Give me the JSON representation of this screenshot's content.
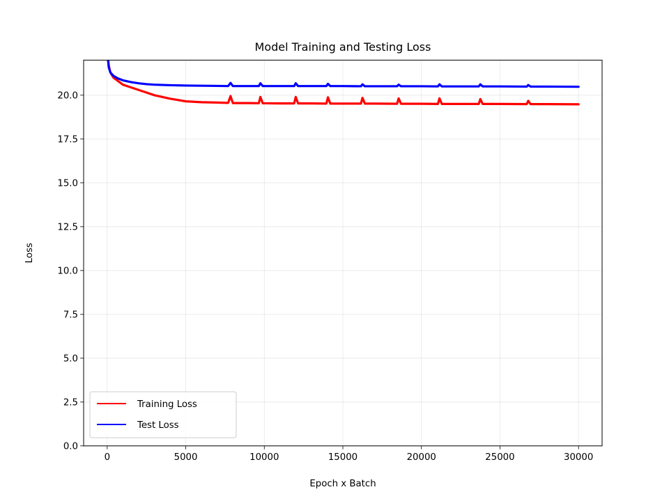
{
  "chart_data": {
    "type": "line",
    "title": "Model Training and Testing Loss",
    "xlabel": "Epoch x Batch",
    "ylabel": "Loss",
    "xlim": [
      -1500,
      31500
    ],
    "ylim": [
      0,
      22
    ],
    "xticks": [
      0,
      5000,
      10000,
      15000,
      20000,
      25000,
      30000
    ],
    "xtick_labels": [
      "0",
      "5000",
      "10000",
      "15000",
      "20000",
      "25000",
      "30000"
    ],
    "yticks": [
      0,
      2.5,
      5,
      7.5,
      10,
      12.5,
      15,
      17.5,
      20
    ],
    "ytick_labels": [
      "0.0",
      "2.5",
      "5.0",
      "7.5",
      "10.0",
      "12.5",
      "15.0",
      "17.5",
      "20.0"
    ],
    "grid": true,
    "legend_position": "lower-left",
    "series": [
      {
        "name": "Training Loss",
        "color": "#ff0000",
        "x": [
          0,
          100,
          200,
          400,
          700,
          1000,
          1500,
          2000,
          2500,
          3000,
          4000,
          5000,
          6000,
          7000,
          7700,
          7850,
          8000,
          9000,
          9650,
          9750,
          9900,
          11000,
          11900,
          12000,
          12150,
          13000,
          13950,
          14050,
          14200,
          15000,
          16150,
          16250,
          16400,
          17000,
          18450,
          18550,
          18700,
          20000,
          21050,
          21150,
          21300,
          22000,
          23650,
          23750,
          23900,
          25000,
          26700,
          26800,
          26950,
          28000,
          30000
        ],
        "y": [
          22.5,
          21.7,
          21.3,
          21.0,
          20.8,
          20.6,
          20.45,
          20.3,
          20.15,
          20.0,
          19.8,
          19.65,
          19.6,
          19.58,
          19.56,
          19.95,
          19.55,
          19.55,
          19.54,
          19.9,
          19.54,
          19.53,
          19.53,
          19.9,
          19.53,
          19.53,
          19.52,
          19.88,
          19.52,
          19.52,
          19.52,
          19.85,
          19.52,
          19.52,
          19.51,
          19.82,
          19.51,
          19.51,
          19.5,
          19.82,
          19.5,
          19.5,
          19.5,
          19.78,
          19.5,
          19.5,
          19.49,
          19.68,
          19.49,
          19.49,
          19.48
        ]
      },
      {
        "name": "Test Loss",
        "color": "#0000ff",
        "x": [
          0,
          100,
          200,
          400,
          700,
          1000,
          1500,
          2000,
          2500,
          3000,
          4000,
          5000,
          6000,
          7000,
          7700,
          7850,
          8000,
          9000,
          9650,
          9750,
          9900,
          11000,
          11900,
          12000,
          12150,
          13000,
          13950,
          14050,
          14200,
          15000,
          16150,
          16250,
          16400,
          17000,
          18450,
          18550,
          18700,
          20000,
          21050,
          21150,
          21300,
          22000,
          23650,
          23750,
          23900,
          25000,
          26700,
          26800,
          26950,
          28000,
          30000
        ],
        "y": [
          22.5,
          21.6,
          21.3,
          21.1,
          20.95,
          20.85,
          20.75,
          20.68,
          20.63,
          20.6,
          20.57,
          20.55,
          20.54,
          20.53,
          20.52,
          20.7,
          20.52,
          20.52,
          20.52,
          20.68,
          20.52,
          20.52,
          20.52,
          20.68,
          20.52,
          20.52,
          20.52,
          20.65,
          20.52,
          20.52,
          20.51,
          20.62,
          20.51,
          20.51,
          20.51,
          20.6,
          20.51,
          20.51,
          20.5,
          20.62,
          20.5,
          20.5,
          20.5,
          20.62,
          20.5,
          20.5,
          20.49,
          20.58,
          20.49,
          20.49,
          20.48
        ]
      }
    ]
  }
}
